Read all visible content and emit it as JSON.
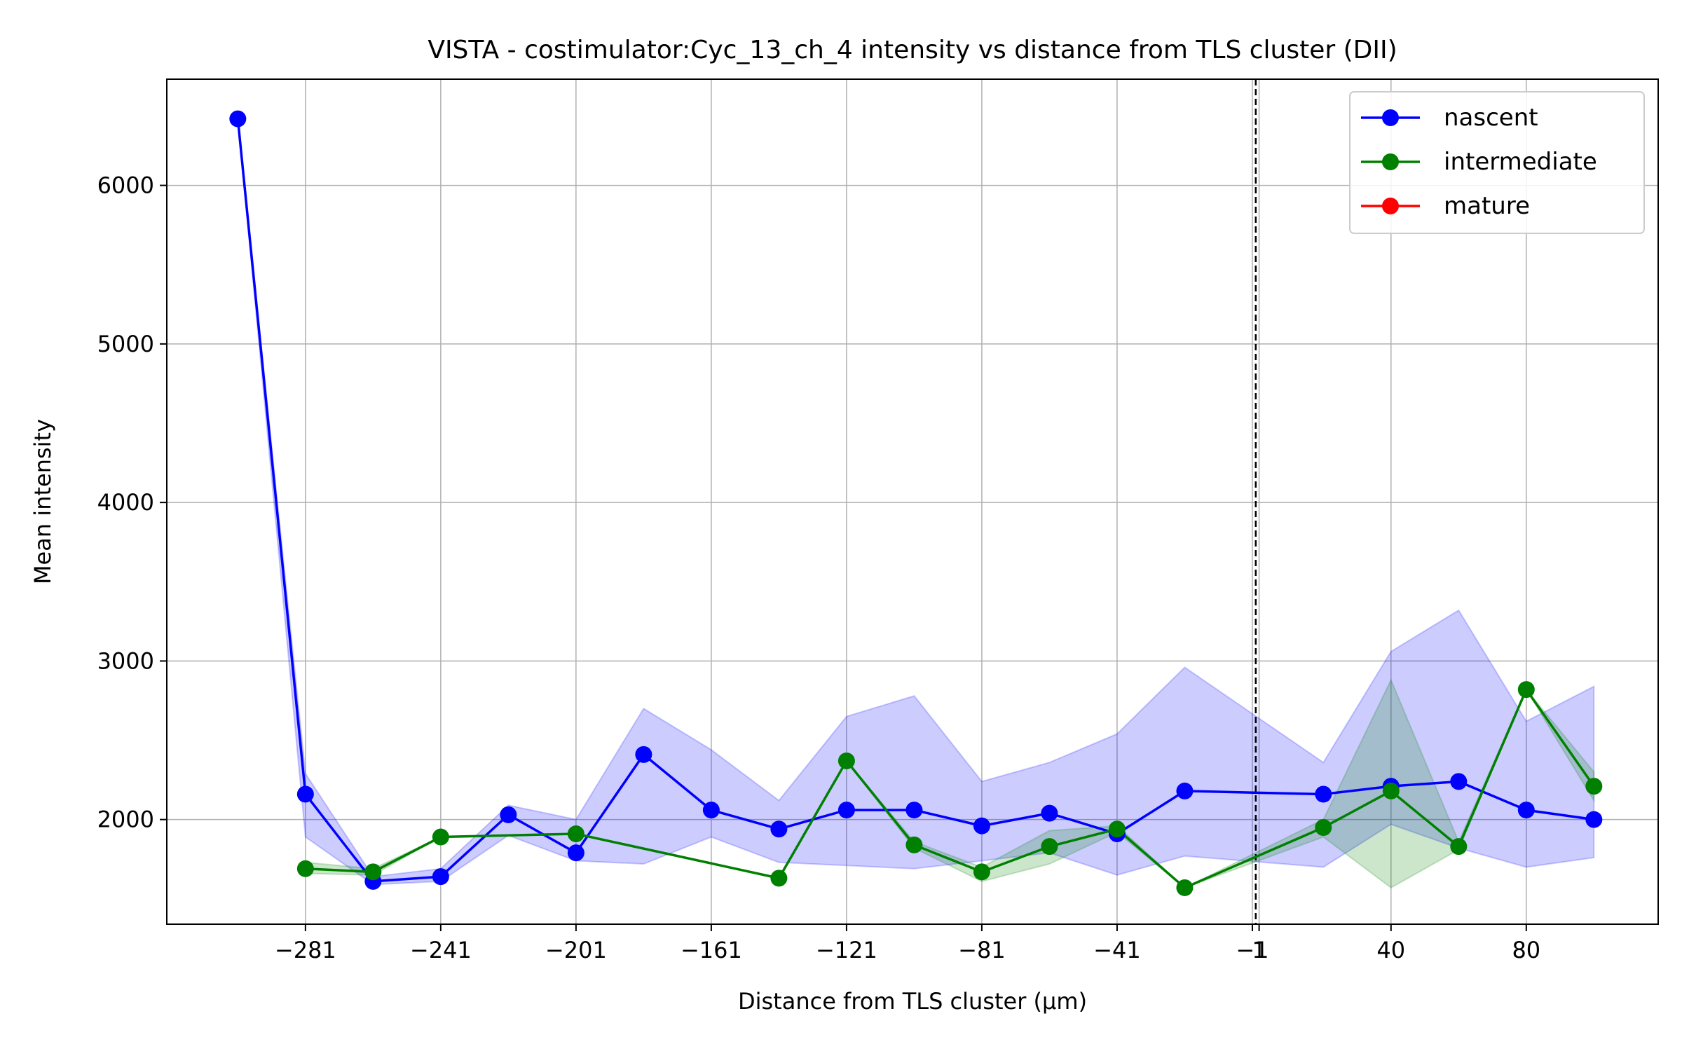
{
  "chart_data": {
    "type": "line",
    "title": "VISTA - costimulator:Cyc_13_ch_4 intensity vs distance from TLS cluster (DII)",
    "xlabel": "Distance from TLS cluster (μm)",
    "ylabel": "Mean intensity",
    "xlim": [
      -322,
      119
    ],
    "ylim": [
      1340,
      6670
    ],
    "xticks": [
      -281,
      -241,
      -201,
      -161,
      -121,
      -81,
      -41,
      -1,
      1,
      40,
      80
    ],
    "xtick_labels": [
      "−281",
      "−241",
      "−201",
      "−161",
      "−121",
      "−81",
      "−41",
      "−1",
      "1",
      "40",
      "80"
    ],
    "yticks": [
      2000,
      3000,
      4000,
      5000,
      6000
    ],
    "ytick_labels": [
      "2000",
      "3000",
      "4000",
      "5000",
      "6000"
    ],
    "vline": {
      "x": 0,
      "style": "dashed"
    },
    "grid": true,
    "legend_position": "top-right",
    "series": [
      {
        "name": "nascent",
        "color": "#0000ff",
        "x": [
          -301,
          -281,
          -261,
          -241,
          -221,
          -201,
          -181,
          -161,
          -141,
          -121,
          -101,
          -81,
          -61,
          -41,
          -21,
          20,
          40,
          60,
          80,
          100
        ],
        "y": [
          6420,
          2160,
          1610,
          1640,
          2030,
          1790,
          2410,
          2060,
          1940,
          2060,
          2060,
          1960,
          2040,
          1910,
          2180,
          2160,
          2210,
          2240,
          2060,
          2000
        ],
        "upper": [
          6420,
          2290,
          1640,
          1690,
          2090,
          2000,
          2700,
          2440,
          2120,
          2650,
          2780,
          2240,
          2360,
          2540,
          2960,
          2360,
          3060,
          3320,
          2620,
          2840
        ],
        "lower": [
          6420,
          1890,
          1590,
          1610,
          1900,
          1740,
          1720,
          1890,
          1730,
          1710,
          1690,
          1740,
          1790,
          1650,
          1770,
          1700,
          1970,
          1820,
          1700,
          1760
        ]
      },
      {
        "name": "intermediate",
        "color": "#008000",
        "x": [
          -281,
          -261,
          -241,
          -201,
          -141,
          -121,
          -101,
          -81,
          -61,
          -41,
          -21,
          20,
          40,
          60,
          80,
          100
        ],
        "y": [
          1690,
          1670,
          1890,
          1910,
          1630,
          2370,
          1840,
          1670,
          1830,
          1940,
          1570,
          1950,
          2180,
          1830,
          2820,
          2210
        ],
        "upper": [
          1730,
          1690,
          1890,
          1910,
          1630,
          2370,
          1860,
          1700,
          1930,
          1960,
          1570,
          2000,
          2880,
          1860,
          2820,
          2300
        ],
        "lower": [
          1660,
          1650,
          1890,
          1910,
          1630,
          2370,
          1820,
          1610,
          1720,
          1920,
          1570,
          1890,
          1570,
          1810,
          2820,
          2120
        ]
      },
      {
        "name": "mature",
        "color": "#ff0000",
        "x": [],
        "y": [],
        "upper": [],
        "lower": []
      }
    ]
  }
}
